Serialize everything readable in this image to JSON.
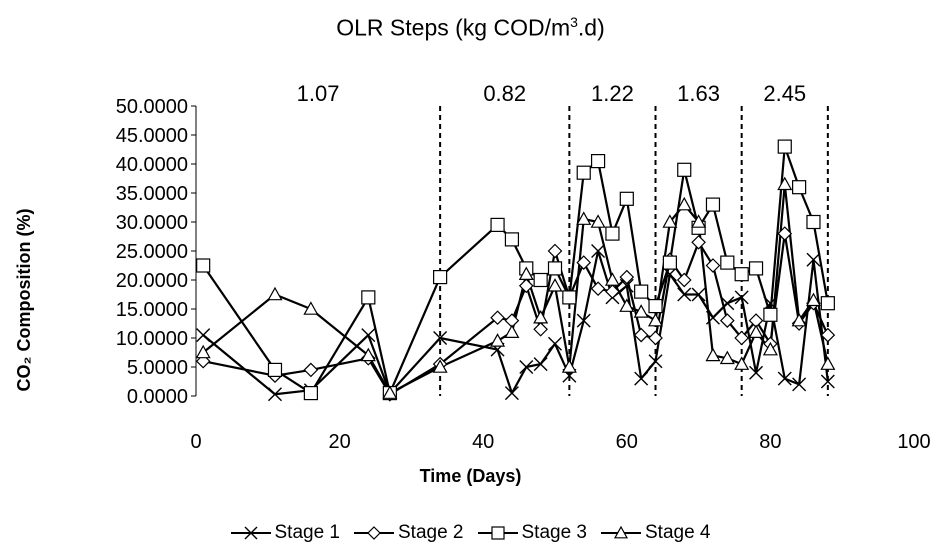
{
  "chart_data": {
    "type": "line",
    "title_prefix": "OLR Steps (kg COD/m",
    "title_sup": "3",
    "title_suffix": ".d)",
    "xlabel": "Time (Days)",
    "ylabel": "CO₂ Composition (%)",
    "xlim": [
      0,
      100
    ],
    "ylim": [
      0,
      50
    ],
    "x_ticks": [
      "0",
      "20",
      "40",
      "60",
      "80",
      "100"
    ],
    "y_ticks": [
      "0.0000",
      "5.0000",
      "10.0000",
      "15.0000",
      "20.0000",
      "25.0000",
      "30.0000",
      "35.0000",
      "40.0000",
      "45.0000",
      "50.0000"
    ],
    "olr_boundaries": [
      34,
      52,
      64,
      76,
      88
    ],
    "olr_labels": [
      {
        "text": "1.07",
        "x": 17
      },
      {
        "text": "0.82",
        "x": 43
      },
      {
        "text": "1.22",
        "x": 58
      },
      {
        "text": "1.63",
        "x": 70
      },
      {
        "text": "2.45",
        "x": 82
      }
    ],
    "series": [
      {
        "name": "Stage 1",
        "marker": "x",
        "points": [
          [
            1,
            10.5
          ],
          [
            11,
            0.3
          ],
          [
            16,
            1
          ],
          [
            24,
            10.5
          ],
          [
            27,
            0.5
          ],
          [
            34,
            10
          ],
          [
            42,
            8
          ],
          [
            44,
            0.5
          ],
          [
            46,
            5
          ],
          [
            48,
            5.5
          ],
          [
            50,
            9
          ],
          [
            52,
            3.5
          ],
          [
            54,
            13
          ],
          [
            56,
            25
          ],
          [
            58,
            17
          ],
          [
            60,
            19
          ],
          [
            62,
            3
          ],
          [
            64,
            6
          ],
          [
            66,
            21
          ],
          [
            68,
            17.5
          ],
          [
            70,
            17.5
          ],
          [
            72,
            13.5
          ],
          [
            74,
            16
          ],
          [
            76,
            17
          ],
          [
            78,
            4
          ],
          [
            80,
            16
          ],
          [
            82,
            3
          ],
          [
            84,
            2
          ],
          [
            86,
            23.5
          ],
          [
            88,
            2.5
          ]
        ]
      },
      {
        "name": "Stage 2",
        "marker": "diamond",
        "points": [
          [
            1,
            6
          ],
          [
            11,
            3.5
          ],
          [
            16,
            4.5
          ],
          [
            24,
            6.5
          ],
          [
            27,
            0.3
          ],
          [
            34,
            5.5
          ],
          [
            42,
            13.5
          ],
          [
            44,
            13
          ],
          [
            46,
            19
          ],
          [
            48,
            11.5
          ],
          [
            50,
            25
          ],
          [
            52,
            17
          ],
          [
            54,
            23
          ],
          [
            56,
            18.5
          ],
          [
            58,
            18
          ],
          [
            60,
            20.5
          ],
          [
            62,
            10.5
          ],
          [
            64,
            10
          ],
          [
            66,
            23.5
          ],
          [
            68,
            20
          ],
          [
            70,
            26.5
          ],
          [
            72,
            22.5
          ],
          [
            74,
            13
          ],
          [
            76,
            10
          ],
          [
            78,
            13
          ],
          [
            80,
            9
          ],
          [
            82,
            28
          ],
          [
            84,
            12.5
          ],
          [
            86,
            16
          ],
          [
            88,
            10.5
          ]
        ]
      },
      {
        "name": "Stage 3",
        "marker": "square",
        "points": [
          [
            1,
            22.5
          ],
          [
            11,
            4.5
          ],
          [
            16,
            0.5
          ],
          [
            24,
            17
          ],
          [
            27,
            0.5
          ],
          [
            34,
            20.5
          ],
          [
            42,
            29.5
          ],
          [
            44,
            27
          ],
          [
            46,
            22
          ],
          [
            48,
            20
          ],
          [
            50,
            22
          ],
          [
            52,
            17
          ],
          [
            54,
            38.5
          ],
          [
            56,
            40.5
          ],
          [
            58,
            28
          ],
          [
            60,
            34
          ],
          [
            62,
            18
          ],
          [
            64,
            15.5
          ],
          [
            66,
            23
          ],
          [
            68,
            39
          ],
          [
            70,
            29
          ],
          [
            72,
            33
          ],
          [
            74,
            23
          ],
          [
            76,
            21
          ],
          [
            78,
            22
          ],
          [
            80,
            14
          ],
          [
            82,
            43
          ],
          [
            84,
            36
          ],
          [
            86,
            30
          ],
          [
            88,
            16
          ]
        ]
      },
      {
        "name": "Stage 4",
        "marker": "triangle",
        "points": [
          [
            1,
            7.5
          ],
          [
            11,
            17.5
          ],
          [
            16,
            15
          ],
          [
            24,
            7
          ],
          [
            27,
            0.5
          ],
          [
            34,
            5
          ],
          [
            42,
            9.5
          ],
          [
            44,
            11
          ],
          [
            46,
            21
          ],
          [
            48,
            13.5
          ],
          [
            50,
            19
          ],
          [
            52,
            5
          ],
          [
            54,
            30.5
          ],
          [
            56,
            30
          ],
          [
            58,
            20
          ],
          [
            60,
            15.5
          ],
          [
            62,
            14.5
          ],
          [
            64,
            13
          ],
          [
            66,
            30
          ],
          [
            68,
            33
          ],
          [
            70,
            30
          ],
          [
            72,
            7
          ],
          [
            74,
            6.5
          ],
          [
            76,
            5.5
          ],
          [
            78,
            11
          ],
          [
            80,
            8
          ],
          [
            82,
            36.5
          ],
          [
            84,
            13
          ],
          [
            86,
            16.5
          ],
          [
            88,
            5.5
          ]
        ]
      }
    ]
  }
}
